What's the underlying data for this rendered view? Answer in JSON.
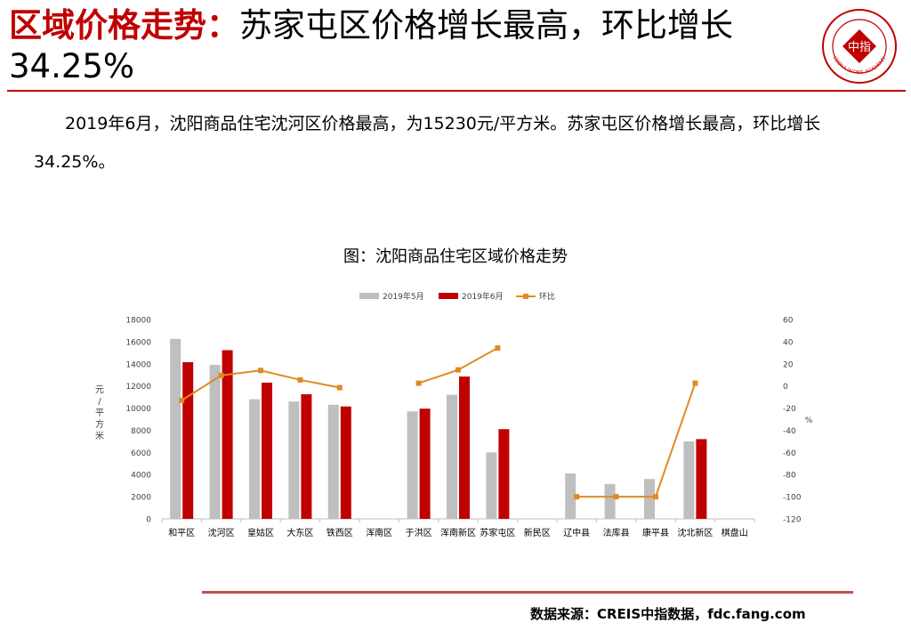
{
  "header": {
    "title_highlight": "区域价格走势：",
    "title_rest": "苏家屯区价格增长最高，环比增长34.25%",
    "logo_text": "中指",
    "logo_ring_text": "CHINA INDEX ACADEMY"
  },
  "summary": "2019年6月，沈阳商品住宅沈河区价格最高，为15230元/平方米。苏家屯区价格增长最高，环比增长34.25%。",
  "chart_title": "图：沈阳商品住宅区域价格走势",
  "chart_data": {
    "type": "bar",
    "categories": [
      "和平区",
      "沈河区",
      "皇姑区",
      "大东区",
      "铁西区",
      "浑南区",
      "于洪区",
      "浑南新区",
      "苏家屯区",
      "新民区",
      "辽中县",
      "法库县",
      "康平县",
      "沈北新区",
      "棋盘山"
    ],
    "series": [
      {
        "name": "2019年5月",
        "type": "bar",
        "axis": "left",
        "color": "#bfbfbf",
        "values": [
          16250,
          13900,
          10800,
          10600,
          10300,
          null,
          9700,
          11200,
          6000,
          null,
          4100,
          3150,
          3600,
          7000,
          null
        ]
      },
      {
        "name": "2019年6月",
        "type": "bar",
        "axis": "left",
        "color": "#c00000",
        "values": [
          14150,
          15230,
          12300,
          11250,
          10150,
          null,
          9950,
          12850,
          8100,
          null,
          null,
          null,
          null,
          7200,
          null
        ]
      },
      {
        "name": "环比",
        "type": "line",
        "axis": "right",
        "color": "#e08a24",
        "values": [
          -13,
          9.5,
          14,
          5.5,
          -1.5,
          null,
          2.5,
          14.5,
          34.25,
          null,
          -100,
          -100,
          -100,
          2.5,
          null
        ]
      }
    ],
    "y_left": {
      "label": "元/平方米",
      "lim": [
        0,
        18000
      ],
      "ticks": [
        0,
        2000,
        4000,
        6000,
        8000,
        10000,
        12000,
        14000,
        16000,
        18000
      ]
    },
    "y_right": {
      "label": "%",
      "lim": [
        -120,
        60
      ],
      "ticks": [
        -120,
        -100,
        -80,
        -60,
        -40,
        -20,
        0,
        20,
        40,
        60
      ]
    },
    "legend_position": "top-center",
    "grid": false
  },
  "footer": {
    "source": "数据来源：CREIS中指数据，fdc.fang.com"
  }
}
